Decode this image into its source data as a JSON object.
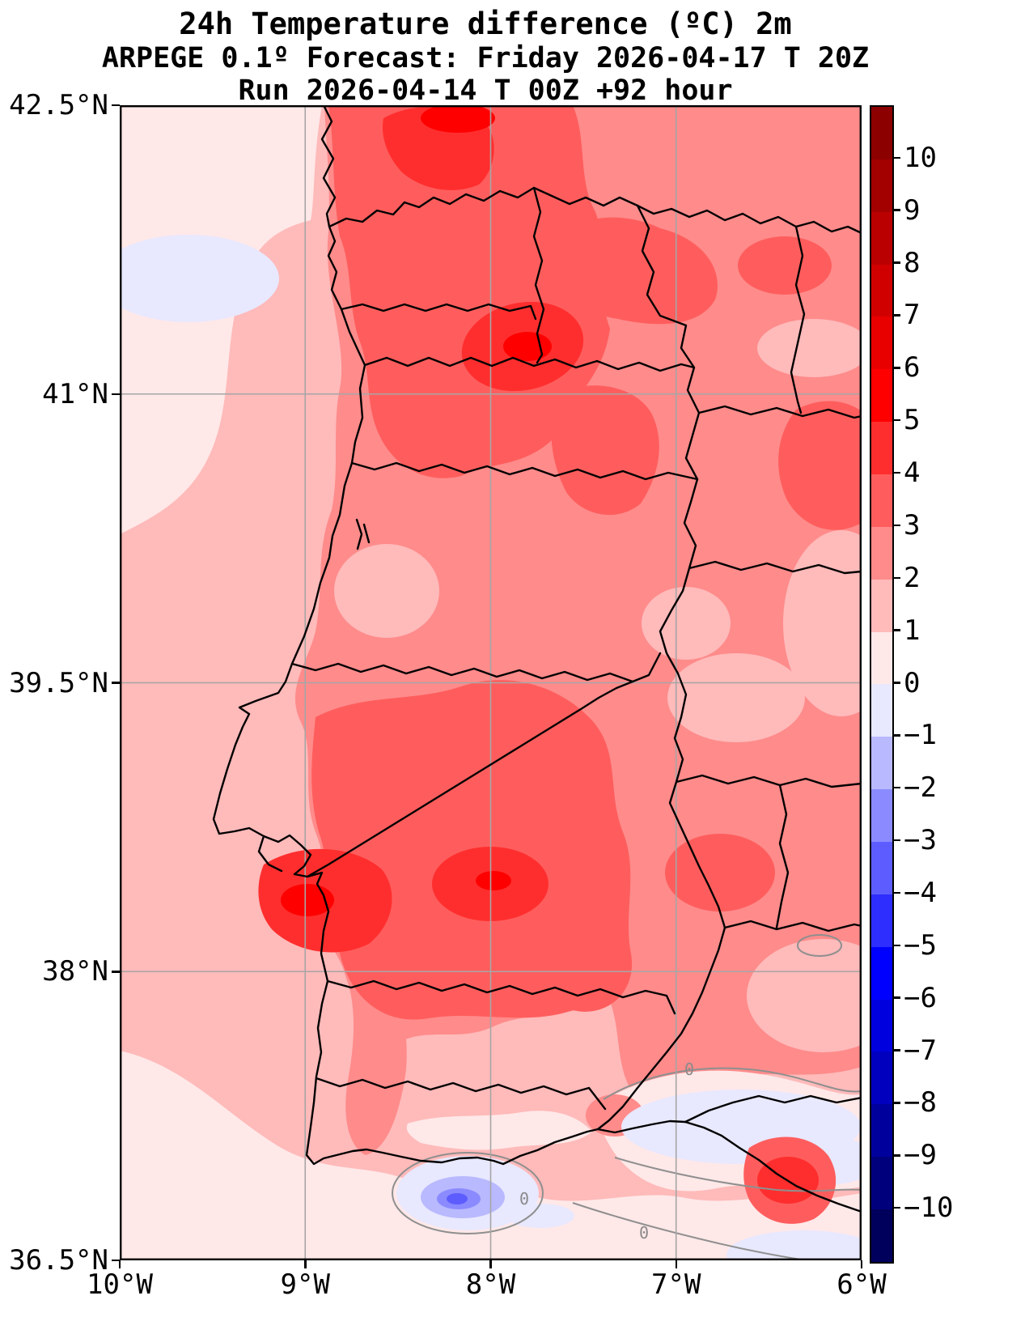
{
  "title": {
    "line1": "24h Temperature difference (ºC) 2m",
    "line2": "ARPEGE 0.1º Forecast: Friday 2026-04-17 T 20Z",
    "line3": "Run 2026-04-14 T 00Z +92 hour"
  },
  "axes": {
    "lat_tick_labels": [
      "42.5°N",
      "41°N",
      "39.5°N",
      "38°N",
      "36.5°N"
    ],
    "lon_tick_labels": [
      "10°W",
      "9°W",
      "8°W",
      "7°W",
      "6°W"
    ],
    "lat_range": [
      36.5,
      42.5
    ],
    "lon_range": [
      -10,
      -6
    ]
  },
  "colorbar": {
    "units": "ºC",
    "tick_labels": [
      "10",
      "9",
      "8",
      "7",
      "6",
      "5",
      "4",
      "3",
      "2",
      "1",
      "0",
      "−1",
      "−2",
      "−3",
      "−4",
      "−5",
      "−6",
      "−7",
      "−8",
      "−9",
      "−10"
    ],
    "segment_colors_top_to_bottom": [
      "#8c0000",
      "#a30000",
      "#ba0000",
      "#d10000",
      "#e80000",
      "#ff0000",
      "#ff2e2e",
      "#ff5d5d",
      "#ff8b8b",
      "#ffbaba",
      "#ffe8e8",
      "#e8e8ff",
      "#b9b9ff",
      "#8b8bff",
      "#5d5dff",
      "#2e2eff",
      "#0000ff",
      "#0000de",
      "#0000be",
      "#00009d",
      "#00007d",
      "#00005c"
    ]
  },
  "map": {
    "zero_contour_label": "0",
    "zero_contour_color": "#8f8f8f",
    "boundary_color": "#000000",
    "grid_color": "#a6a6a6"
  },
  "chart_data": {
    "type": "heatmap",
    "title": "24h Temperature difference (ºC) 2m",
    "contour_interval": 1,
    "value_range": [
      -11,
      11
    ],
    "colormap": "blue-white-red diverging (seismic-like), discrete 1ºC steps",
    "lon_grid": [
      -10,
      -9.5,
      -9,
      -8.5,
      -8,
      -7.5,
      -7,
      -6.5,
      -6
    ],
    "lat_grid": [
      42.5,
      42.0,
      41.5,
      41.0,
      40.5,
      40.0,
      39.5,
      39.0,
      38.5,
      38.0,
      37.5,
      37.0,
      36.5
    ],
    "values_by_lat_row": [
      [
        0.5,
        1,
        4,
        5,
        3,
        3,
        3,
        2,
        2
      ],
      [
        0.5,
        -0.5,
        3,
        4,
        3.5,
        3,
        2.5,
        3,
        2
      ],
      [
        1,
        1.5,
        3.5,
        4.5,
        3.5,
        3,
        2.5,
        2.5,
        2.5
      ],
      [
        1,
        1.5,
        3,
        4,
        3,
        3.5,
        2.5,
        2.5,
        3
      ],
      [
        1,
        1.5,
        2.5,
        3,
        2.5,
        3,
        2.5,
        2,
        2.5
      ],
      [
        1,
        1.5,
        2,
        2.5,
        2.5,
        2.5,
        2,
        2,
        2
      ],
      [
        1,
        1.5,
        2.5,
        3.5,
        3,
        2.5,
        2,
        2,
        2
      ],
      [
        1,
        2,
        3.5,
        4,
        3.5,
        2.5,
        2.5,
        2,
        2
      ],
      [
        1,
        2,
        4.5,
        4,
        3.5,
        3,
        2.5,
        2.5,
        2
      ],
      [
        0.5,
        1.5,
        2.5,
        3.5,
        3,
        2.5,
        2.5,
        2,
        1.5
      ],
      [
        0.5,
        1,
        1.5,
        2,
        1.5,
        1,
        0.5,
        -0.5,
        -0.5
      ],
      [
        0.5,
        0.5,
        1,
        0.5,
        -2,
        0.5,
        0.5,
        1,
        -0.5
      ],
      [
        0.5,
        0.5,
        0.5,
        0.5,
        0.5,
        0.5,
        0.5,
        3,
        0.5
      ]
    ]
  }
}
